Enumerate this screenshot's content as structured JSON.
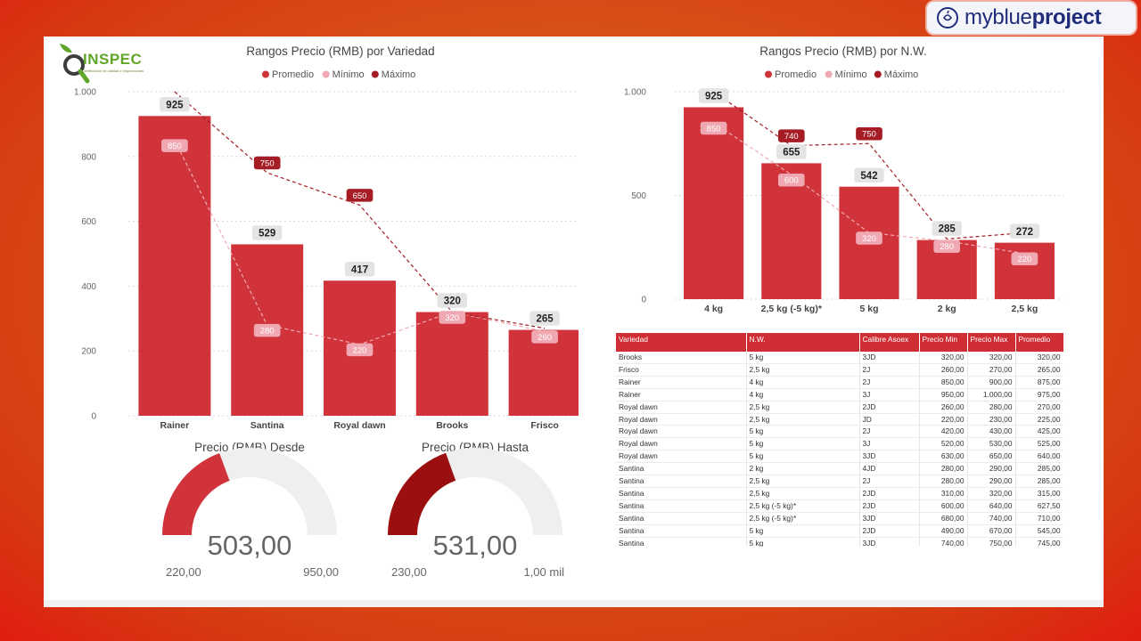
{
  "brand": {
    "part1": "myblue",
    "part2": "project",
    "icon": "apple-icon"
  },
  "logo": {
    "text": "INSPEC",
    "subtitle": "Certificación de calidad e Inspecciones"
  },
  "colors": {
    "promedio": "#d0333a",
    "minimo": "#f0a9b3",
    "maximo": "#a51c24",
    "gauge_hasta": "#9b0f10",
    "gauge_bg": "#efefef"
  },
  "legend": {
    "promedio": "Promedio",
    "minimo": "Mínimo",
    "maximo": "Máximo"
  },
  "chart_data": [
    {
      "type": "bar",
      "title": "Rangos Precio (RMB) por Variedad",
      "categories": [
        "Rainer",
        "Santina",
        "Royal dawn",
        "Brooks",
        "Frisco"
      ],
      "series": [
        {
          "name": "Promedio",
          "values": [
            925,
            529,
            417,
            320,
            265
          ],
          "labels": [
            "925",
            "529",
            "417",
            "320",
            "265"
          ]
        },
        {
          "name": "Mínimo",
          "values": [
            850,
            280,
            220,
            320,
            260
          ],
          "labels": [
            "850",
            "280",
            "220",
            "320",
            "260"
          ]
        },
        {
          "name": "Máximo",
          "values": [
            1000,
            750,
            650,
            320,
            270
          ],
          "labels": [
            "",
            "750",
            "650",
            "",
            ""
          ]
        }
      ],
      "ylim": [
        0,
        1000
      ],
      "yticks": [
        0,
        200,
        400,
        600,
        800,
        1000
      ],
      "ytick_labels": [
        "0",
        "200",
        "400",
        "600",
        "800",
        "1.000"
      ],
      "grid": true,
      "legend_position": "top"
    },
    {
      "type": "bar",
      "title": "Rangos Precio (RMB) por N.W.",
      "categories": [
        "4 kg",
        "2,5 kg (-5 kg)*",
        "5 kg",
        "2 kg",
        "2,5 kg"
      ],
      "series": [
        {
          "name": "Promedio",
          "values": [
            925,
            655,
            542,
            285,
            272
          ],
          "labels": [
            "925",
            "655",
            "542",
            "285",
            "272"
          ]
        },
        {
          "name": "Mínimo",
          "values": [
            850,
            600,
            320,
            280,
            220
          ],
          "labels": [
            "850",
            "600",
            "320",
            "280",
            "220"
          ]
        },
        {
          "name": "Máximo",
          "values": [
            1000,
            740,
            750,
            290,
            320
          ],
          "labels": [
            "",
            "740",
            "750",
            "",
            ""
          ]
        }
      ],
      "ylim": [
        0,
        1000
      ],
      "yticks": [
        0,
        500,
        1000
      ],
      "ytick_labels": [
        "0",
        "500",
        "1.000"
      ],
      "grid": true,
      "legend_position": "top"
    }
  ],
  "gauges": [
    {
      "title": "Precio (RMB) Desde",
      "value": 503,
      "value_label": "503,00",
      "min": 220,
      "max": 950,
      "min_label": "220,00",
      "max_label": "950,00"
    },
    {
      "title": "Precio (RMB) Hasta",
      "value": 531,
      "value_label": "531,00",
      "min": 230,
      "max": 1000,
      "min_label": "230,00",
      "max_label": "1,00 mil"
    }
  ],
  "table": {
    "columns": [
      "Variedad",
      "N.W.",
      "Calibre Asoex",
      "Precio Min",
      "Precio Max",
      "Promedio"
    ],
    "rows": [
      [
        "Brooks",
        "5 kg",
        "3JD",
        "320,00",
        "320,00",
        "320,00"
      ],
      [
        "Frisco",
        "2,5 kg",
        "2J",
        "260,00",
        "270,00",
        "265,00"
      ],
      [
        "Rainer",
        "4 kg",
        "2J",
        "850,00",
        "900,00",
        "875,00"
      ],
      [
        "Rainer",
        "4 kg",
        "3J",
        "950,00",
        "1.000,00",
        "975,00"
      ],
      [
        "Royal dawn",
        "2,5 kg",
        "2JD",
        "260,00",
        "280,00",
        "270,00"
      ],
      [
        "Royal dawn",
        "2,5 kg",
        "JD",
        "220,00",
        "230,00",
        "225,00"
      ],
      [
        "Royal dawn",
        "5 kg",
        "2J",
        "420,00",
        "430,00",
        "425,00"
      ],
      [
        "Royal dawn",
        "5 kg",
        "3J",
        "520,00",
        "530,00",
        "525,00"
      ],
      [
        "Royal dawn",
        "5 kg",
        "3JD",
        "630,00",
        "650,00",
        "640,00"
      ],
      [
        "Santina",
        "2 kg",
        "4JD",
        "280,00",
        "290,00",
        "285,00"
      ],
      [
        "Santina",
        "2,5 kg",
        "2J",
        "280,00",
        "290,00",
        "285,00"
      ],
      [
        "Santina",
        "2,5 kg",
        "2JD",
        "310,00",
        "320,00",
        "315,00"
      ],
      [
        "Santina",
        "2,5 kg (-5 kg)*",
        "2JD",
        "600,00",
        "640,00",
        "627,50"
      ],
      [
        "Santina",
        "2,5 kg (-5 kg)*",
        "3JD",
        "680,00",
        "740,00",
        "710,00"
      ],
      [
        "Santina",
        "5 kg",
        "2JD",
        "490,00",
        "670,00",
        "545,00"
      ],
      [
        "Santina",
        "5 kg",
        "3JD",
        "740,00",
        "750,00",
        "745,00"
      ],
      [
        "Santina",
        "5 kg",
        "4JD",
        "580,00",
        "600,00",
        "590,00"
      ]
    ]
  }
}
